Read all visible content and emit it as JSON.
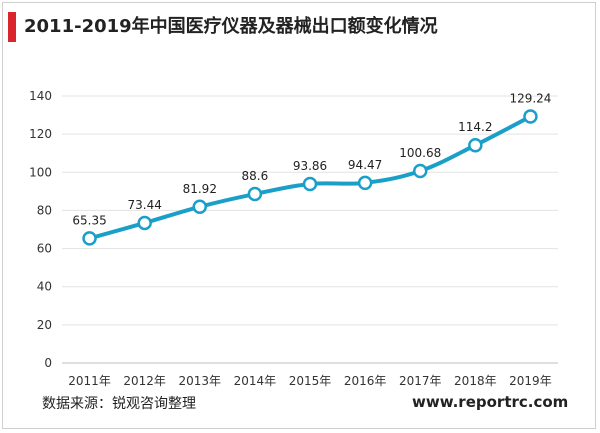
{
  "header": {
    "title": "2011-2019年中国医疗仪器及器械出口额变化情况",
    "accent_color": "#d9262c"
  },
  "footer": {
    "source": "数据来源：锐观咨询整理",
    "website": "www.reportrc.com"
  },
  "chart_data": {
    "type": "line",
    "title": "2011-2019年中国医疗仪器及器械出口额变化情况",
    "xlabel": "",
    "ylabel": "",
    "categories": [
      "2011年",
      "2012年",
      "2013年",
      "2014年",
      "2015年",
      "2016年",
      "2017年",
      "2018年",
      "2019年"
    ],
    "series": [
      {
        "values": [
          65.35,
          73.44,
          81.92,
          88.6,
          93.86,
          94.47,
          100.68,
          114.2,
          129.24
        ],
        "color": "#1aa0c8"
      }
    ],
    "data_labels": [
      "65.35",
      "73.44",
      "81.92",
      "88.6",
      "93.86",
      "94.47",
      "100.68",
      "114.2",
      "129.24"
    ],
    "ylim": [
      0,
      140
    ],
    "yticks": [
      0,
      20,
      40,
      60,
      80,
      100,
      120,
      140
    ],
    "grid": true,
    "legend": "none"
  }
}
